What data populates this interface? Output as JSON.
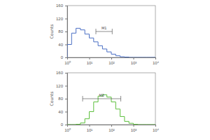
{
  "chart_data": [
    {
      "type": "histogram",
      "y_label": "Counts",
      "color": "#4a6fc4",
      "log": "x",
      "grid": false,
      "bins": [
        1,
        1.585,
        2.512,
        3.981,
        6.31,
        10,
        15.85,
        25.12,
        39.81,
        63.1,
        100,
        158.5,
        251.2,
        398.1,
        631,
        1000,
        1585,
        2512,
        3981,
        6310,
        10000
      ],
      "counts": [
        40,
        75,
        90,
        85,
        72,
        60,
        48,
        36,
        26,
        17,
        10,
        5,
        2,
        1,
        0,
        0,
        0,
        0,
        0,
        0
      ],
      "xlim": [
        1,
        10000
      ],
      "xticks": [
        {
          "value": 1,
          "label": "10⁰"
        },
        {
          "value": 10,
          "label": "10¹"
        },
        {
          "value": 100,
          "label": "10²"
        },
        {
          "value": 1000,
          "label": "10³"
        },
        {
          "value": 10000,
          "label": "10⁴"
        }
      ],
      "ylim": [
        0,
        160
      ],
      "yticks": [
        0,
        40,
        80,
        120,
        160
      ],
      "markers": [
        {
          "label": "M1",
          "range": [
            20,
            110
          ]
        }
      ]
    },
    {
      "type": "histogram",
      "y_label": "Counts",
      "color": "#5cbf3c",
      "log": "x",
      "grid": false,
      "bins": [
        1,
        1.585,
        2.512,
        3.981,
        6.31,
        10,
        15.85,
        25.12,
        39.81,
        63.1,
        100,
        158.5,
        251.2,
        398.1,
        631,
        1000,
        1585,
        2512,
        3981,
        6310,
        10000
      ],
      "counts": [
        0,
        0,
        1,
        5,
        18,
        40,
        70,
        88,
        92,
        85,
        70,
        48,
        25,
        10,
        4,
        1,
        0,
        0,
        0,
        0
      ],
      "xlim": [
        1,
        10000
      ],
      "xticks": [
        {
          "value": 1,
          "label": "10⁰"
        },
        {
          "value": 10,
          "label": "10¹"
        },
        {
          "value": 100,
          "label": "10²"
        },
        {
          "value": 1000,
          "label": "10³"
        },
        {
          "value": 10000,
          "label": "10⁴"
        }
      ],
      "ylim": [
        0,
        160
      ],
      "yticks": [
        0,
        40,
        80,
        120,
        160
      ],
      "markers": [
        {
          "label": "M2",
          "range": [
            5,
            270
          ]
        }
      ]
    }
  ]
}
